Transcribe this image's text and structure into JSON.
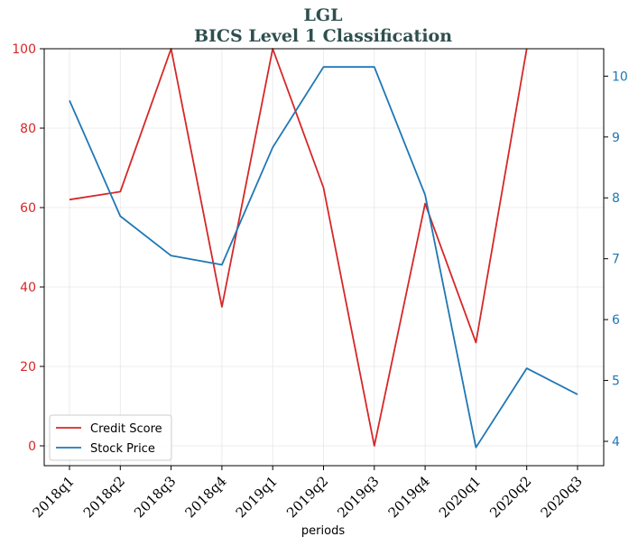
{
  "chart_data": {
    "type": "line",
    "title": "LGL",
    "subtitle": "BICS Level 1 Classification",
    "xlabel": "periods",
    "categories": [
      "2018q1",
      "2018q2",
      "2018q3",
      "2018q4",
      "2019q1",
      "2019q2",
      "2019q3",
      "2019q4",
      "2020q1",
      "2020q2",
      "2020q3"
    ],
    "y_left": {
      "lim": [
        -5,
        100
      ],
      "ticks": [
        0,
        20,
        40,
        60,
        80,
        100
      ],
      "color": "#d62728"
    },
    "y_right": {
      "lim": [
        3.6,
        10.45
      ],
      "ticks": [
        4,
        5,
        6,
        7,
        8,
        9,
        10
      ],
      "color": "#1f77b4"
    },
    "grid": true,
    "legend_position": "lower-left",
    "series": [
      {
        "name": "Credit Score",
        "axis": "left",
        "color": "#d62728",
        "values": [
          62,
          64,
          100,
          35,
          100,
          65,
          0,
          61,
          26,
          100,
          null
        ]
      },
      {
        "name": "Stock Price",
        "axis": "right",
        "color": "#1f77b4",
        "values": [
          9.6,
          7.7,
          7.05,
          6.9,
          8.83,
          10.15,
          10.15,
          8.05,
          3.9,
          5.2,
          4.77
        ]
      }
    ]
  }
}
